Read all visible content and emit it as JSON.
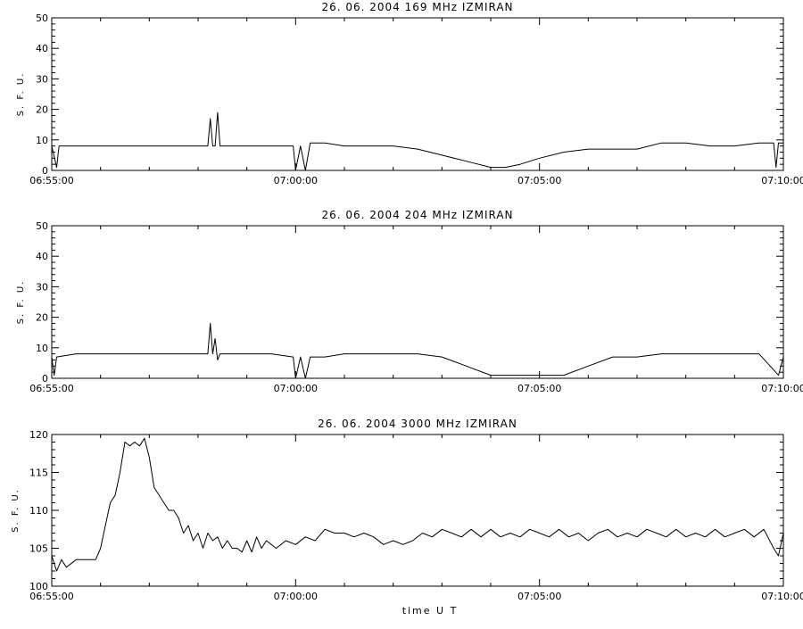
{
  "chart_data": [
    {
      "type": "line",
      "title": "26.  06.  2004    169  MHz    IZMIRAN",
      "ylabel": "S. F. U.",
      "xlabel": "",
      "ylim": [
        0,
        50
      ],
      "xlim": [
        0,
        15
      ],
      "yticks": [
        "0",
        "10",
        "20",
        "30",
        "40",
        "50"
      ],
      "xticks": [
        "06:55:00",
        "07:00:00",
        "07:05:00",
        "07:10:00"
      ],
      "grid": false,
      "series": [
        {
          "x": [
            0.0,
            0.1,
            0.15,
            0.5,
            1.0,
            1.5,
            2.0,
            2.5,
            3.0,
            3.2,
            3.25,
            3.3,
            3.35,
            3.4,
            3.45,
            3.5,
            4.0,
            4.5,
            4.95,
            5.0,
            5.1,
            5.2,
            5.3,
            5.6,
            6.0,
            6.5,
            7.0,
            7.5,
            8.0,
            8.5,
            9.0,
            9.3,
            9.6,
            10.0,
            10.5,
            11.0,
            11.5,
            12.0,
            12.5,
            13.0,
            13.5,
            14.0,
            14.5,
            14.8,
            14.85,
            14.9,
            15.0
          ],
          "y": [
            8,
            1,
            8,
            8,
            8,
            8,
            8,
            8,
            8,
            8,
            17,
            8,
            8,
            19,
            8,
            8,
            8,
            8,
            8,
            0,
            8,
            0,
            9,
            9,
            8,
            8,
            8,
            7,
            5,
            3,
            1,
            1,
            2,
            4,
            6,
            7,
            7,
            7,
            9,
            9,
            8,
            8,
            9,
            9,
            1,
            9,
            9
          ]
        }
      ]
    },
    {
      "type": "line",
      "title": "26.  06.  2004    204  MHz    IZMIRAN",
      "ylabel": "S. F. U.",
      "xlabel": "",
      "ylim": [
        0,
        50
      ],
      "xlim": [
        0,
        15
      ],
      "yticks": [
        "0",
        "10",
        "20",
        "30",
        "40",
        "50"
      ],
      "xticks": [
        "06:55:00",
        "07:00:00",
        "07:05:00",
        "07:10:00"
      ],
      "grid": false,
      "series": [
        {
          "x": [
            0.0,
            0.05,
            0.1,
            0.5,
            1.0,
            1.5,
            2.0,
            2.5,
            3.0,
            3.2,
            3.25,
            3.3,
            3.35,
            3.4,
            3.45,
            3.5,
            4.0,
            4.5,
            4.95,
            5.0,
            5.1,
            5.2,
            5.3,
            5.6,
            6.0,
            6.5,
            7.0,
            7.5,
            8.0,
            8.5,
            9.0,
            9.5,
            10.0,
            10.5,
            11.0,
            11.5,
            12.0,
            12.5,
            13.0,
            13.5,
            14.0,
            14.5,
            14.9,
            15.0
          ],
          "y": [
            7,
            1,
            7,
            8,
            8,
            8,
            8,
            8,
            8,
            8,
            18,
            8,
            13,
            6,
            8,
            8,
            8,
            8,
            7,
            0,
            7,
            0,
            7,
            7,
            8,
            8,
            8,
            8,
            7,
            4,
            1,
            1,
            1,
            1,
            4,
            7,
            7,
            8,
            8,
            8,
            8,
            8,
            1,
            7
          ]
        }
      ]
    },
    {
      "type": "line",
      "title": "26.  06.  2004    3000  MHz    IZMIRAN",
      "ylabel": "S. F. U.",
      "xlabel": "time  U T",
      "ylim": [
        100,
        120
      ],
      "xlim": [
        0,
        15
      ],
      "yticks": [
        "100",
        "105",
        "110",
        "115",
        "120"
      ],
      "xticks": [
        "06:55:00",
        "07:00:00",
        "07:05:00",
        "07:10:00"
      ],
      "grid": false,
      "series": [
        {
          "x": [
            0.0,
            0.1,
            0.2,
            0.3,
            0.5,
            0.7,
            0.9,
            1.0,
            1.1,
            1.2,
            1.3,
            1.4,
            1.5,
            1.6,
            1.7,
            1.8,
            1.9,
            2.0,
            2.1,
            2.2,
            2.3,
            2.4,
            2.5,
            2.6,
            2.7,
            2.8,
            2.9,
            3.0,
            3.1,
            3.2,
            3.3,
            3.4,
            3.5,
            3.6,
            3.7,
            3.8,
            3.9,
            4.0,
            4.1,
            4.2,
            4.3,
            4.4,
            4.6,
            4.8,
            5.0,
            5.2,
            5.4,
            5.6,
            5.8,
            6.0,
            6.2,
            6.4,
            6.6,
            6.8,
            7.0,
            7.2,
            7.4,
            7.6,
            7.8,
            8.0,
            8.2,
            8.4,
            8.6,
            8.8,
            9.0,
            9.2,
            9.4,
            9.6,
            9.8,
            10.0,
            10.2,
            10.4,
            10.6,
            10.8,
            11.0,
            11.2,
            11.4,
            11.6,
            11.8,
            12.0,
            12.2,
            12.4,
            12.6,
            12.8,
            13.0,
            13.2,
            13.4,
            13.6,
            13.8,
            14.0,
            14.2,
            14.4,
            14.6,
            14.8,
            14.9,
            15.0
          ],
          "y": [
            104,
            102,
            103.5,
            102.5,
            103.5,
            103.5,
            103.5,
            105,
            108,
            111,
            112,
            115,
            119,
            118.5,
            119,
            118.5,
            119.5,
            117,
            113,
            112,
            111,
            110,
            110,
            109,
            107,
            108,
            106,
            107,
            105,
            107,
            106,
            106.5,
            105,
            106,
            105,
            105,
            104.5,
            106,
            104.5,
            106.5,
            105,
            106,
            105,
            106,
            105.5,
            106.5,
            106,
            107.5,
            107,
            107,
            106.5,
            107,
            106.5,
            105.5,
            106,
            105.5,
            106,
            107,
            106.5,
            107.5,
            107,
            106.5,
            107.5,
            106.5,
            107.5,
            106.5,
            107,
            106.5,
            107.5,
            107,
            106.5,
            107.5,
            106.5,
            107,
            106,
            107,
            107.5,
            106.5,
            107,
            106.5,
            107.5,
            107,
            106.5,
            107.5,
            106.5,
            107,
            106.5,
            107.5,
            106.5,
            107,
            107.5,
            106.5,
            107.5,
            105,
            104,
            107
          ]
        }
      ]
    }
  ]
}
